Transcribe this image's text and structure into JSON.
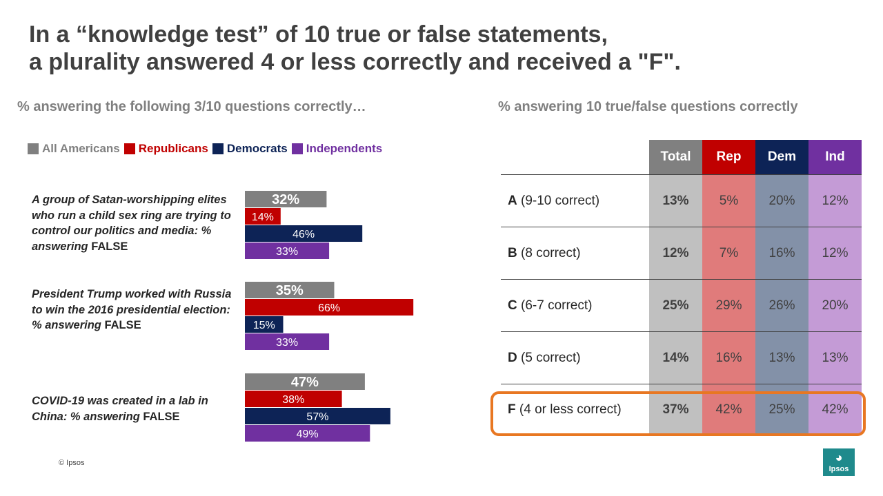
{
  "title": {
    "line1": "In a “knowledge test” of 10 true or false statements,",
    "line2": "a plurality answered 4 or less correctly and received a \"F\"."
  },
  "left_subtitle": "% answering the following 3/10 questions correctly…",
  "right_subtitle": "% answering 10 true/false questions correctly",
  "legend": [
    {
      "label": "All Americans",
      "color": "#808080"
    },
    {
      "label": "Republicans",
      "color": "#c00000"
    },
    {
      "label": "Democrats",
      "color": "#0d2356"
    },
    {
      "label": "Independents",
      "color": "#7030a0"
    }
  ],
  "questions": [
    {
      "text": "A group of Satan-worshipping elites who run a child sex ring are trying to control our politics and media: % answering",
      "answer": "FALSE"
    },
    {
      "text": "President Trump worked with Russia to win the 2016 presidential election: % answering",
      "answer": "FALSE"
    },
    {
      "text": "COVID-19 was created in a lab in China: % answering",
      "answer": "FALSE"
    }
  ],
  "chart_data": {
    "type": "bar",
    "orientation": "horizontal",
    "categories": [
      "A group of Satan-worshipping elites who run a child sex ring are trying to control our politics and media: % answering FALSE",
      "President Trump worked with Russia to win the 2016 presidential election: % answering FALSE",
      "COVID-19 was created in a lab in China: % answering FALSE"
    ],
    "series": [
      {
        "name": "All Americans",
        "color": "#808080",
        "values": [
          32,
          35,
          47
        ],
        "labels": [
          "32%",
          "35%",
          "47%"
        ]
      },
      {
        "name": "Republicans",
        "color": "#c00000",
        "values": [
          14,
          66,
          38
        ],
        "labels": [
          "14%",
          "66%",
          "38%"
        ]
      },
      {
        "name": "Democrats",
        "color": "#0d2356",
        "values": [
          46,
          15,
          57
        ],
        "labels": [
          "46%",
          "15%",
          "57%"
        ]
      },
      {
        "name": "Independents",
        "color": "#7030a0",
        "values": [
          33,
          33,
          49
        ],
        "labels": [
          "33%",
          "33%",
          "49%"
        ]
      }
    ],
    "title": "",
    "xlabel": "",
    "ylabel": ""
  },
  "table": {
    "headers": [
      {
        "label": "Total",
        "color": "#808080",
        "tint": "#c0c0c0"
      },
      {
        "label": "Rep",
        "color": "#c00000",
        "tint": "#e07b7b"
      },
      {
        "label": "Dem",
        "color": "#0d2356",
        "tint": "#8391a8"
      },
      {
        "label": "Ind",
        "color": "#7030a0",
        "tint": "#c49bd6"
      }
    ],
    "rows": [
      {
        "grade": "A",
        "desc": "(9-10 correct)",
        "values": [
          "13%",
          "5%",
          "20%",
          "12%"
        ]
      },
      {
        "grade": "B",
        "desc": "(8 correct)",
        "values": [
          "12%",
          "7%",
          "16%",
          "12%"
        ]
      },
      {
        "grade": "C",
        "desc": "(6-7 correct)",
        "values": [
          "25%",
          "29%",
          "26%",
          "20%"
        ]
      },
      {
        "grade": "D",
        "desc": "(5 correct)",
        "values": [
          "14%",
          "16%",
          "13%",
          "13%"
        ]
      },
      {
        "grade": "F",
        "desc": "(4 or less correct)",
        "values": [
          "37%",
          "42%",
          "25%",
          "42%"
        ]
      }
    ]
  },
  "highlight_color": "#e87722",
  "copyright": "© Ipsos",
  "logo": {
    "text": "Ipsos",
    "color": "#1f8a8c"
  }
}
